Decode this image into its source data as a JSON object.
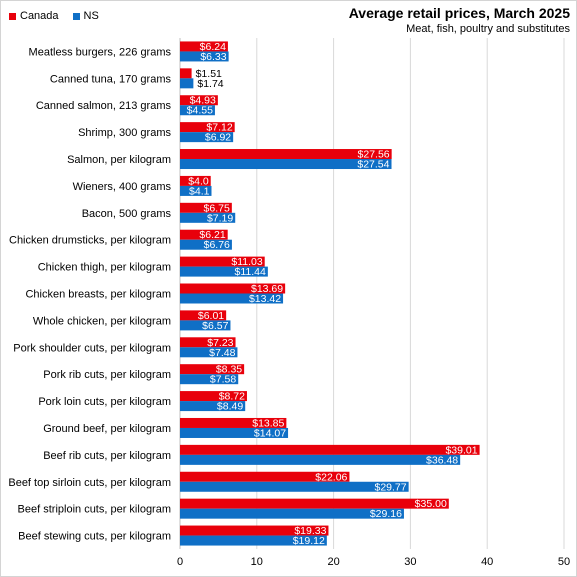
{
  "chart_data": {
    "type": "bar",
    "orientation": "horizontal",
    "title": "Average retail prices, March 2025",
    "subtitle": "Meat,  fish, poultry and substitutes",
    "legend_position": "top-left",
    "grid": true,
    "xlim": [
      0,
      50
    ],
    "xticks": [
      0,
      10,
      20,
      30,
      40,
      50
    ],
    "categories": [
      "Meatless burgers, 226 grams",
      "Canned tuna, 170 grams",
      "Canned salmon, 213 grams",
      "Shrimp, 300 grams",
      "Salmon, per kilogram",
      "Wieners, 400 grams",
      "Bacon, 500 grams",
      "Chicken drumsticks, per kilogram",
      "Chicken thigh, per kilogram",
      "Chicken breasts, per kilogram",
      "Whole chicken, per kilogram",
      "Pork shoulder cuts, per kilogram",
      "Pork rib cuts, per kilogram",
      "Pork loin cuts, per kilogram",
      "Ground beef, per kilogram",
      "Beef rib cuts, per kilogram",
      "Beef top sirloin cuts, per kilogram",
      "Beef striploin cuts, per kilogram",
      "Beef stewing cuts, per kilogram"
    ],
    "series": [
      {
        "name": "Canada",
        "color": "#e8000b",
        "values": [
          6.24,
          1.51,
          4.93,
          7.12,
          27.56,
          4.0,
          6.75,
          6.21,
          11.03,
          13.69,
          6.01,
          7.23,
          8.35,
          8.72,
          13.85,
          39.01,
          22.06,
          35.0,
          19.33
        ],
        "labels": [
          "$6.24",
          "$1.51",
          "$4.93",
          "$7.12",
          "$27.56",
          "$4.0",
          "$6.75",
          "$6.21",
          "$11.03",
          "$13.69",
          "$6.01",
          "$7.23",
          "$8.35",
          "$8.72",
          "$13.85",
          "$39.01",
          "$22.06",
          "$35.00",
          "$19.33"
        ]
      },
      {
        "name": "NS",
        "color": "#0f6fc6",
        "values": [
          6.33,
          1.74,
          4.55,
          6.92,
          27.54,
          4.1,
          7.19,
          6.76,
          11.44,
          13.42,
          6.57,
          7.48,
          7.58,
          8.49,
          14.07,
          36.48,
          29.77,
          29.16,
          19.12
        ],
        "labels": [
          "$6.33",
          "$1.74",
          "$4.55",
          "$6.92",
          "$27.54",
          "$4.1",
          "$7.19",
          "$6.76",
          "$11.44",
          "$13.42",
          "$6.57",
          "$7.48",
          "$7.58",
          "$8.49",
          "$14.07",
          "$36.48",
          "$29.77",
          "$29.16",
          "$19.12"
        ]
      }
    ]
  }
}
